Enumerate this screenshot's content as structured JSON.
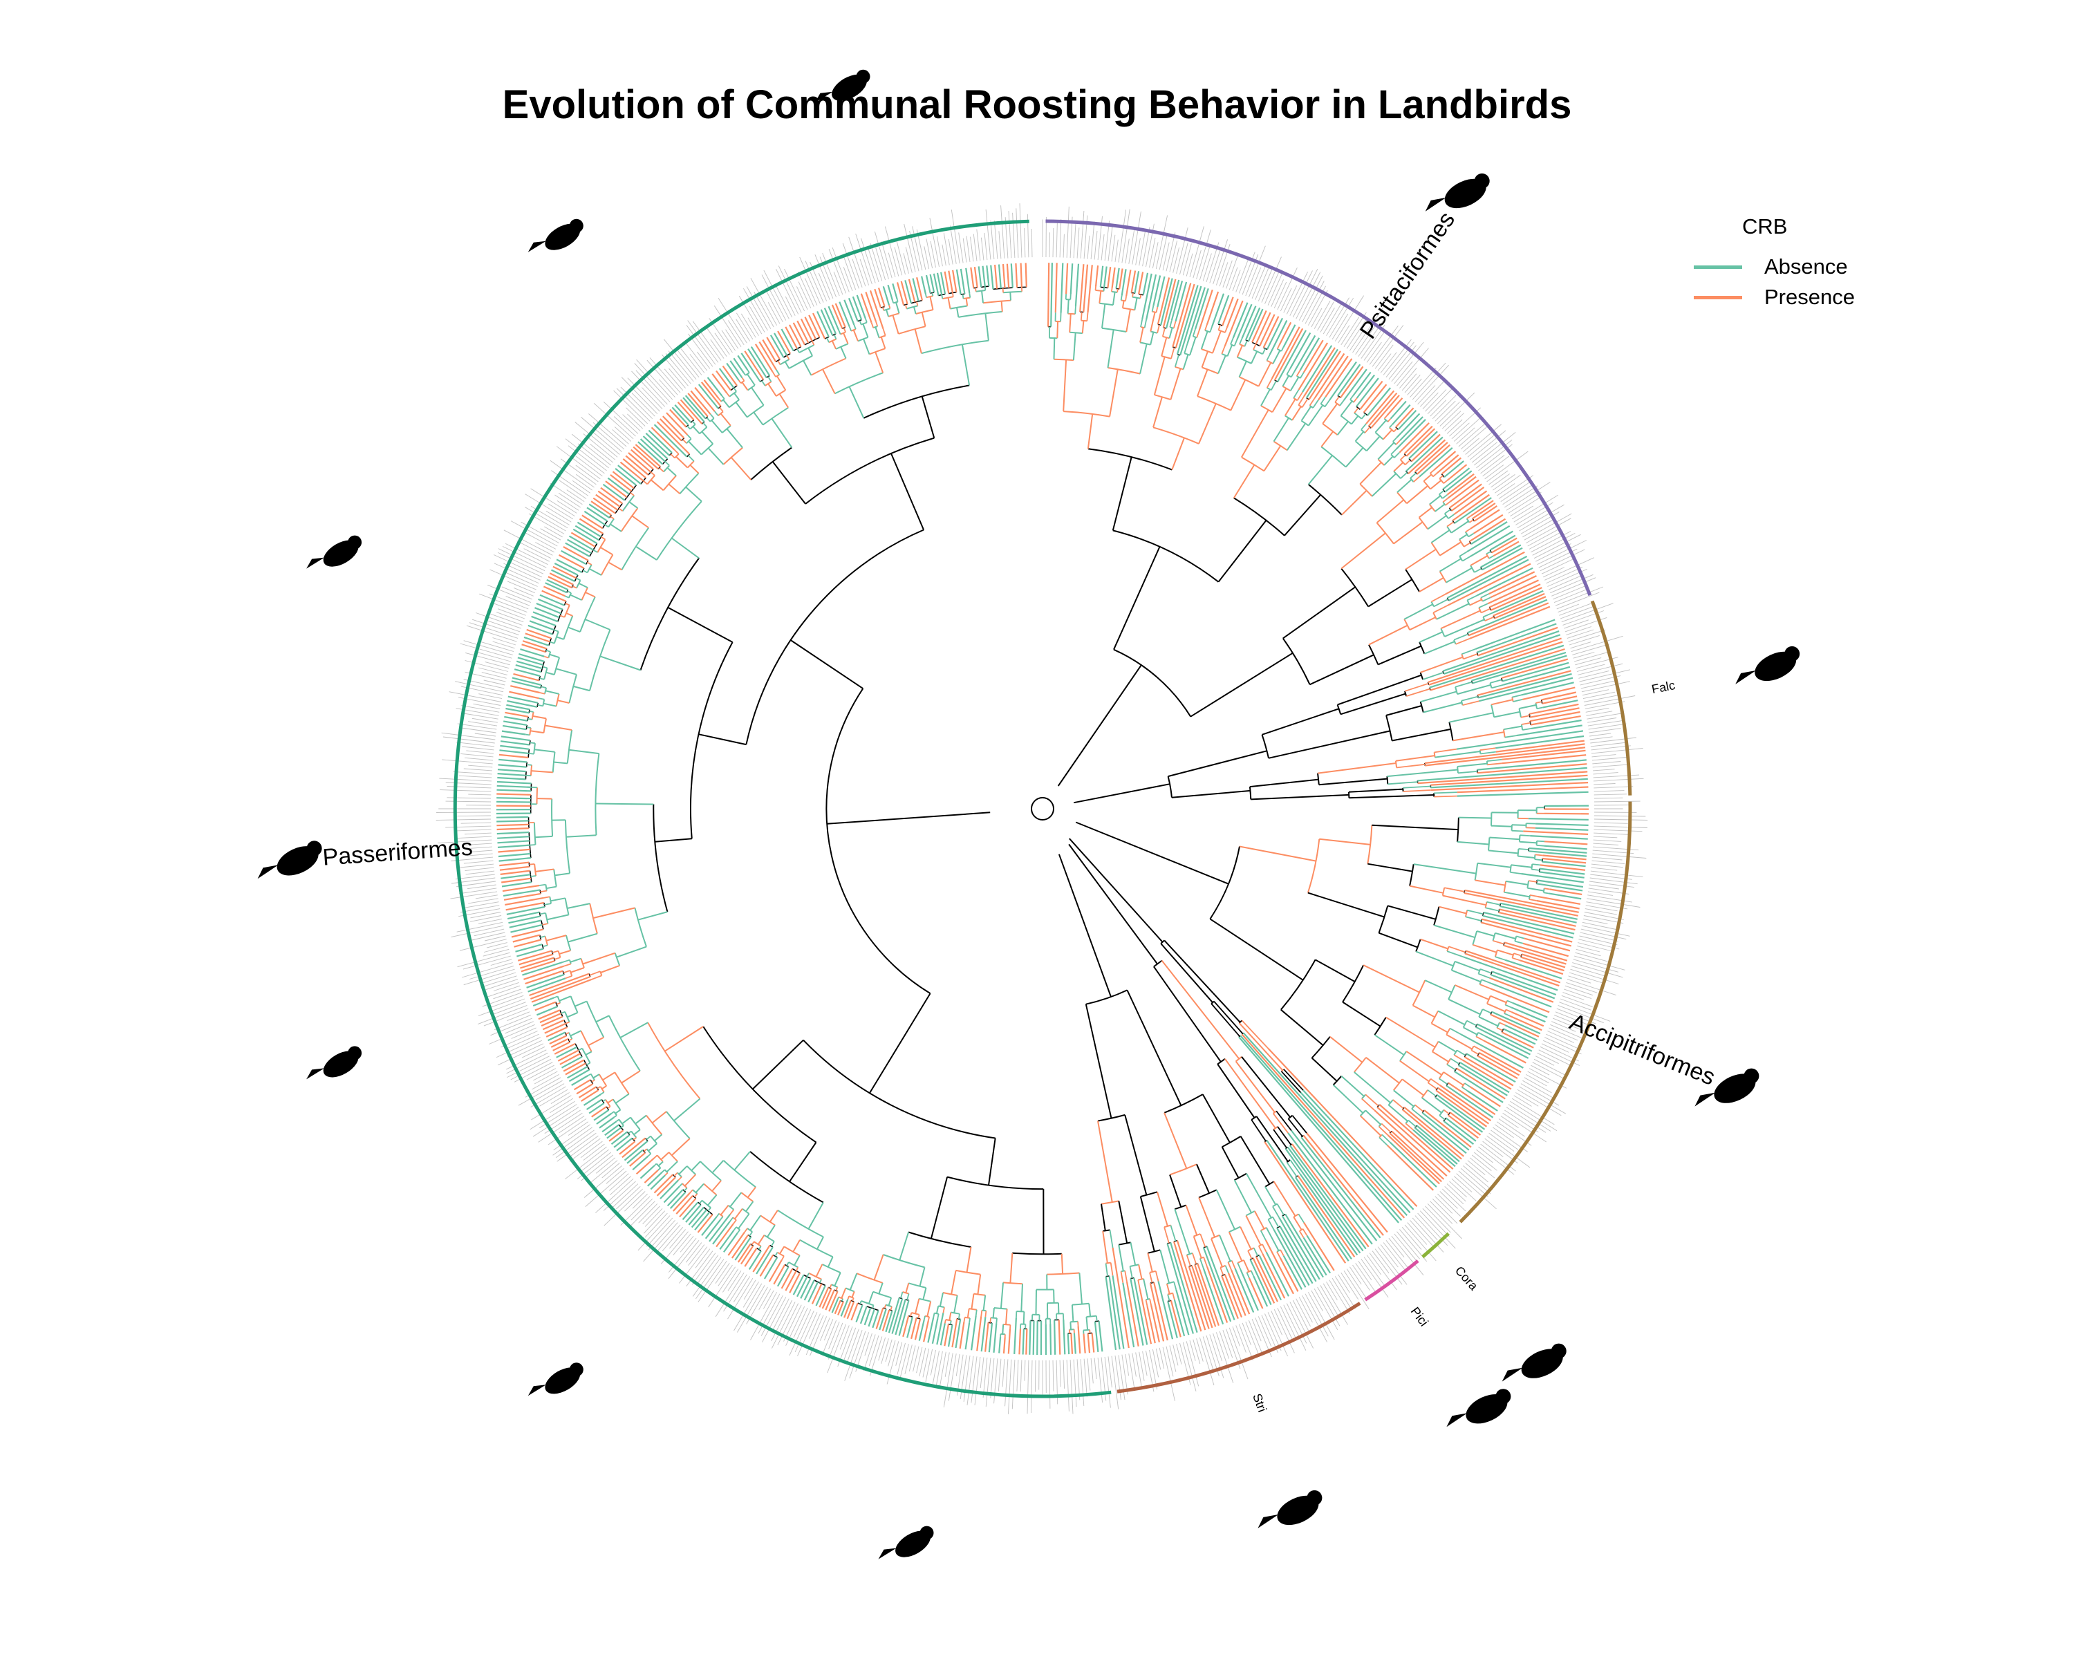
{
  "title": "Evolution of Communal Roosting Behavior in Landbirds",
  "legend": {
    "title": "CRB",
    "items": [
      {
        "label": "Absence",
        "color": "#66c2a5"
      },
      {
        "label": "Presence",
        "color": "#fc8d62"
      }
    ]
  },
  "colors": {
    "absence": "#66c2a5",
    "presence": "#fc8d62",
    "backbone": "#000000",
    "tip_labels": "#8c8c8c"
  },
  "clades": [
    {
      "label": "Psittaciformes",
      "color": "#7b68b0",
      "start_deg": 0,
      "end_deg": 69,
      "silhouette": "parrot-silhouette"
    },
    {
      "label": "Falc",
      "color": "#a07a3a",
      "start_deg": 69,
      "end_deg": 89,
      "silhouette": "falcon-silhouette"
    },
    {
      "label": "Accipitriformes",
      "color": "#a07a3a",
      "start_deg": 89,
      "end_deg": 135,
      "silhouette": "eagle-silhouette"
    },
    {
      "label": "Cora",
      "color": "#8bb33a",
      "start_deg": 136,
      "end_deg": 140,
      "silhouette": "coraciiformes-silhouette"
    },
    {
      "label": "Pici",
      "color": "#d94fa0",
      "start_deg": 140,
      "end_deg": 147,
      "silhouette": "woodpecker-silhouette"
    },
    {
      "label": "Stri",
      "color": "#b06040",
      "start_deg": 147,
      "end_deg": 173,
      "silhouette": "owl-silhouette"
    },
    {
      "label": "Passeriformes",
      "color": "#1f9e77",
      "start_deg": 173,
      "end_deg": 359,
      "silhouette": "passerine-silhouette"
    }
  ]
}
